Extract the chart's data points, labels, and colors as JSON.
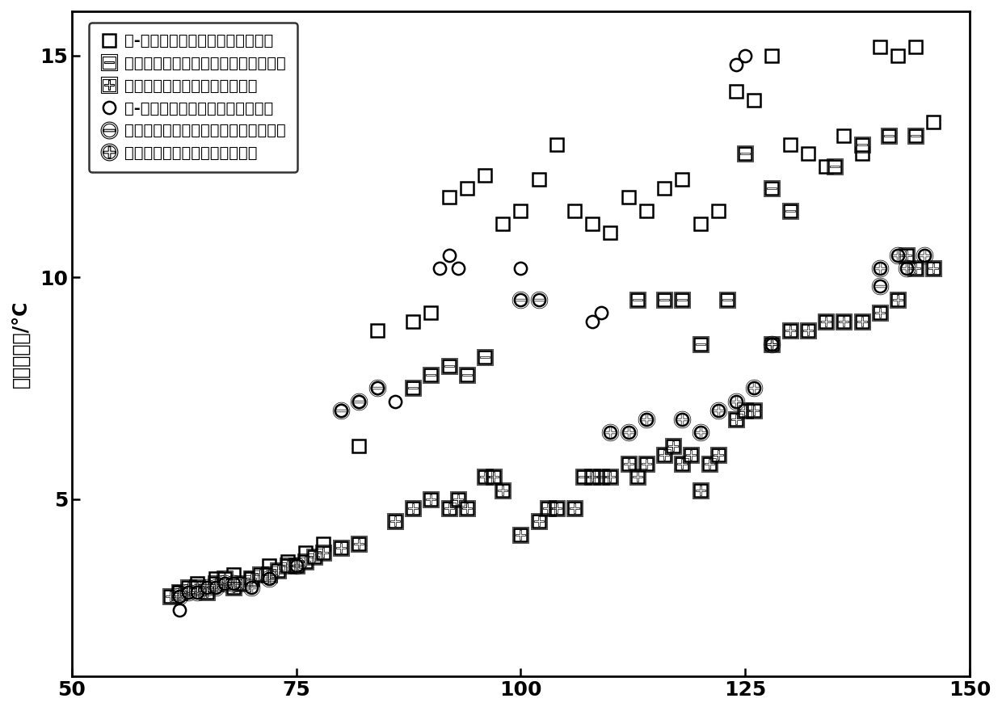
{
  "title": "",
  "xlabel": "",
  "ylabel": "校正温度值/°C",
  "xlim": [
    50,
    150
  ],
  "ylim": [
    1,
    16
  ],
  "xticks": [
    50,
    75,
    100,
    125,
    150
  ],
  "yticks": [
    5,
    10,
    15
  ],
  "background_color": "#ffffff",
  "legend_labels": [
    "无-弱阴极发光方解石中盐水包裹体",
    "中等强度阴极发光方解石中盐水包裹体",
    "强阴极发光方解石中盐水包裹体",
    "无-弱阴极发光方解石中油气包裹体",
    "中等强度阴极发光方解石中油气包裹体",
    "强阴极发光方解石中油气包裹体"
  ],
  "sq_open_x": [
    62,
    64,
    66,
    68,
    70,
    72,
    74,
    76,
    78,
    82,
    84,
    88,
    90,
    92,
    94,
    96,
    98,
    100,
    102,
    104,
    106,
    108,
    110,
    112,
    114,
    116,
    118,
    120,
    122,
    124,
    126,
    128,
    130,
    132,
    134,
    136,
    138,
    140,
    142,
    144,
    146
  ],
  "sq_open_y": [
    2.9,
    3.1,
    3.2,
    3.3,
    3.2,
    3.5,
    3.6,
    3.8,
    4.0,
    6.2,
    8.8,
    9.0,
    9.2,
    11.8,
    12.0,
    12.3,
    11.2,
    11.5,
    12.2,
    13.0,
    11.5,
    11.2,
    11.0,
    11.8,
    11.5,
    12.0,
    12.2,
    11.2,
    11.5,
    14.2,
    14.0,
    15.0,
    13.0,
    12.8,
    12.5,
    13.2,
    12.8,
    15.2,
    15.0,
    15.2,
    13.5
  ],
  "sq_mid_x": [
    88,
    90,
    92,
    94,
    96,
    107,
    109,
    113,
    116,
    118,
    120,
    123,
    125,
    128,
    130,
    135,
    138,
    141,
    144
  ],
  "sq_mid_y": [
    7.5,
    7.8,
    8.0,
    7.8,
    8.2,
    5.5,
    5.5,
    9.5,
    9.5,
    9.5,
    8.5,
    9.5,
    12.8,
    12.0,
    11.5,
    12.5,
    13.0,
    13.2,
    13.2
  ],
  "sq_strong_x": [
    61,
    62,
    63,
    64,
    65,
    66,
    67,
    68,
    69,
    70,
    71,
    72,
    73,
    74,
    75,
    76,
    77,
    78,
    80,
    82,
    86,
    88,
    90,
    92,
    93,
    94,
    96,
    97,
    98,
    100,
    102,
    103,
    104,
    106,
    108,
    110,
    112,
    113,
    114,
    116,
    117,
    118,
    119,
    120,
    121,
    122,
    124,
    125,
    126,
    128,
    130,
    132,
    134,
    136,
    138,
    140,
    142,
    143,
    144,
    146
  ],
  "sq_strong_y": [
    2.8,
    2.9,
    3.0,
    3.0,
    2.9,
    3.1,
    3.2,
    3.0,
    3.1,
    3.2,
    3.3,
    3.3,
    3.4,
    3.5,
    3.5,
    3.6,
    3.7,
    3.8,
    3.9,
    4.0,
    4.5,
    4.8,
    5.0,
    4.8,
    5.0,
    4.8,
    5.5,
    5.5,
    5.2,
    4.2,
    4.5,
    4.8,
    4.8,
    4.8,
    5.5,
    5.5,
    5.8,
    5.5,
    5.8,
    6.0,
    6.2,
    5.8,
    6.0,
    5.2,
    5.8,
    6.0,
    6.8,
    7.0,
    7.0,
    8.5,
    8.8,
    8.8,
    9.0,
    9.0,
    9.0,
    9.2,
    9.5,
    10.5,
    10.2,
    10.2
  ],
  "circ_open_x": [
    62,
    80,
    82,
    84,
    86,
    91,
    92,
    93,
    100,
    108,
    109,
    124,
    125
  ],
  "circ_open_y": [
    2.5,
    7.0,
    7.2,
    7.5,
    7.2,
    10.2,
    10.5,
    10.2,
    10.2,
    9.0,
    9.2,
    14.8,
    15.0
  ],
  "circ_mid_x": [
    80,
    82,
    84,
    100,
    102,
    140
  ],
  "circ_mid_y": [
    7.0,
    7.2,
    7.5,
    9.5,
    9.5,
    9.8
  ],
  "circ_strong_x": [
    62,
    63,
    64,
    65,
    66,
    67,
    68,
    70,
    72,
    75,
    110,
    112,
    114,
    118,
    120,
    122,
    124,
    126,
    128,
    140,
    142,
    143,
    145
  ],
  "circ_strong_y": [
    2.8,
    2.9,
    2.9,
    3.0,
    3.0,
    3.1,
    3.1,
    3.0,
    3.2,
    3.5,
    6.5,
    6.5,
    6.8,
    6.8,
    6.5,
    7.0,
    7.2,
    7.5,
    8.5,
    10.2,
    10.5,
    10.2,
    10.5
  ]
}
